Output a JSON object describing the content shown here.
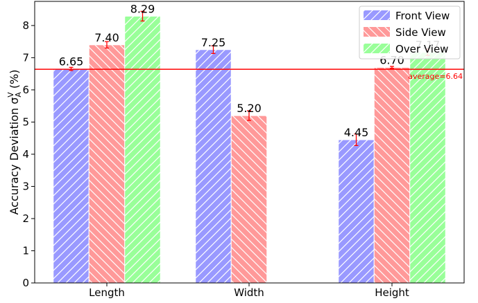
{
  "chart_data": {
    "type": "bar",
    "categories": [
      "Length",
      "Width",
      "Height"
    ],
    "series": [
      {
        "name": "Front View",
        "values": [
          6.65,
          7.25,
          4.45
        ],
        "errors": [
          0.05,
          0.12,
          0.18
        ],
        "color": "#9999ff",
        "hatch": "up"
      },
      {
        "name": "Side View",
        "values": [
          7.4,
          5.2,
          6.7
        ],
        "errors": [
          0.1,
          0.15,
          0.03
        ],
        "color": "#ff9999",
        "hatch": "down"
      },
      {
        "name": "Over View",
        "values": [
          8.29,
          null,
          7.17
        ],
        "errors": [
          0.15,
          null,
          0.1
        ],
        "color": "#99ff99",
        "hatch": "up"
      }
    ],
    "value_labels": [
      [
        "6.65",
        "7.25",
        "4.45"
      ],
      [
        "7.40",
        "5.20",
        "6.70"
      ],
      [
        "8.29",
        "",
        "7.17"
      ]
    ],
    "ylabel_main": "Accuracy Deviation σ",
    "ylabel_sub": "A",
    "ylabel_sup": "V",
    "ylabel_unit": " (%)",
    "ylim": [
      0,
      8.75
    ],
    "yticks": [
      "0",
      "1",
      "2",
      "3",
      "4",
      "5",
      "6",
      "7",
      "8"
    ],
    "average": {
      "value": 6.64,
      "label": "average=6.64",
      "color": "#ff0000"
    },
    "error_color": "#ff0000",
    "legend_position": "top-right",
    "grid": false
  }
}
